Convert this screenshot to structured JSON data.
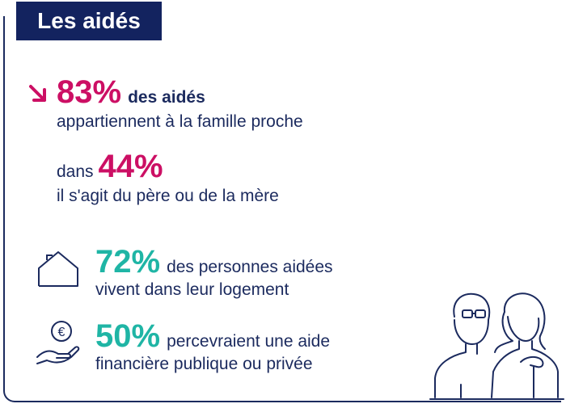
{
  "title": "Les aidés",
  "stat1": {
    "value": "83%",
    "label": "des aidés",
    "detail": "appartiennent à la famille proche"
  },
  "stat2": {
    "prefix": "dans",
    "value": "44%",
    "detail": "il s'agit du père ou de la mère"
  },
  "stat3": {
    "value": "72%",
    "label": "des personnes aidées",
    "detail": "vivent dans leur logement"
  },
  "stat4": {
    "value": "50%",
    "label": "percevraient une aide",
    "detail": "financière publique ou privée"
  },
  "icons": {
    "arrow": "arrow-down-right-icon",
    "house": "house-icon",
    "money": "euro-hand-icon",
    "people": "elderly-couple-icon"
  },
  "colors": {
    "navy": "#13235f",
    "pink": "#cc0f64",
    "teal": "#1fb5a5"
  },
  "euro_symbol": "€"
}
